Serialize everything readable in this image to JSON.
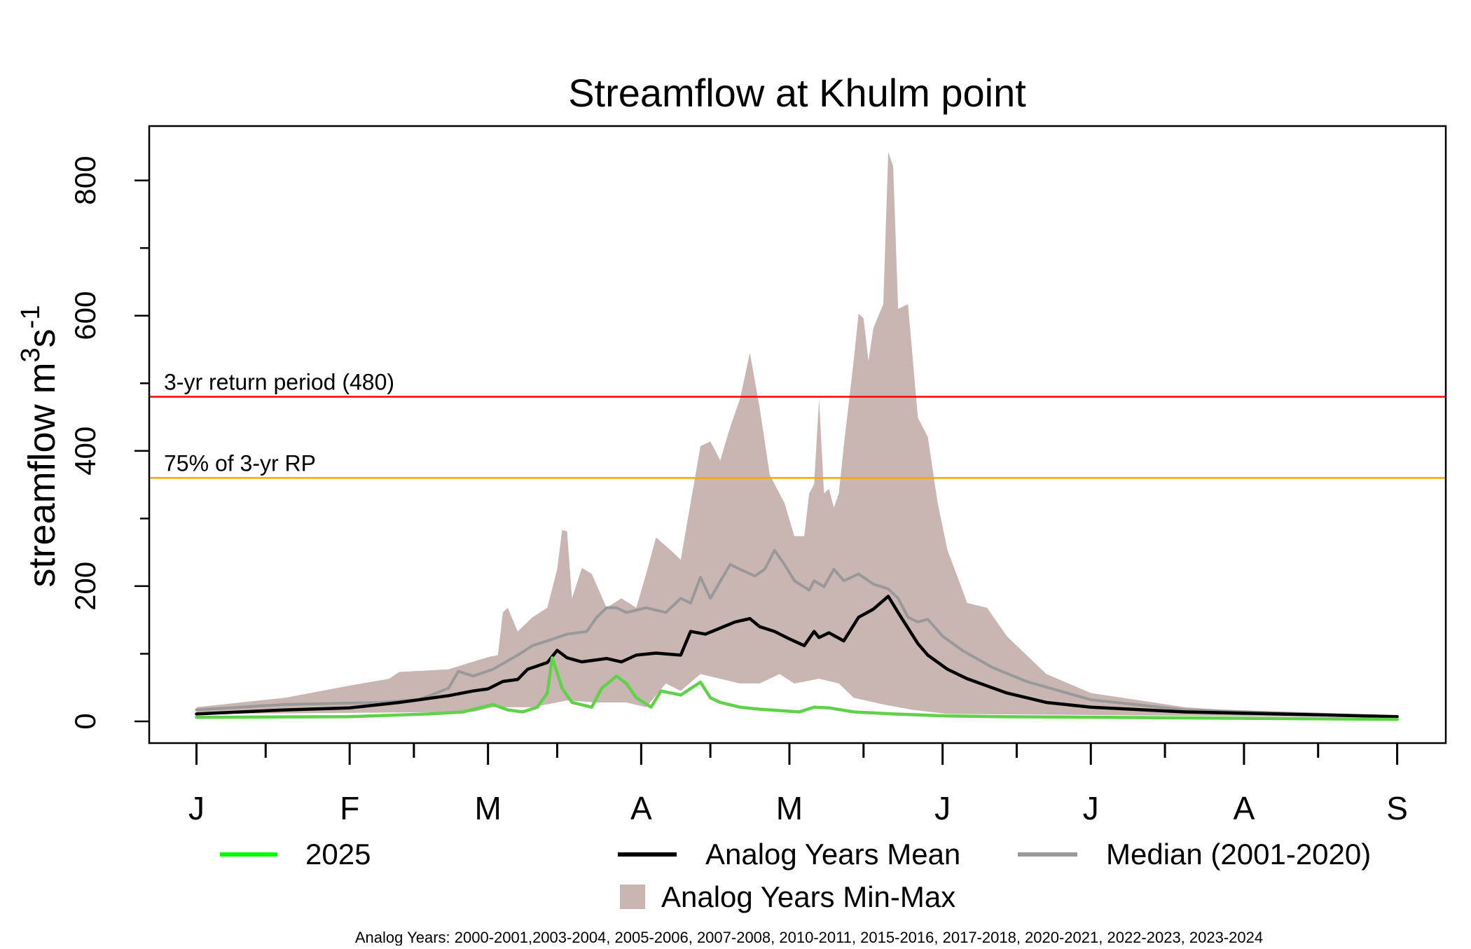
{
  "chart_data": {
    "type": "line",
    "title": "Streamflow at Khulm point",
    "ylabel": "streamflow m3s-1",
    "ylabel_parts": {
      "base": "streamflow m",
      "sup1": "3",
      "mid": "s",
      "sup2": "-1"
    },
    "xlabel": "",
    "x_unit": "day of season starting Jan 1",
    "xlim": [
      0,
      243
    ],
    "ylim": [
      0,
      800
    ],
    "y_ticks": [
      0,
      200,
      400,
      600,
      800
    ],
    "y_minor_ticks": [
      100,
      300,
      500,
      700
    ],
    "x_ticks": [
      {
        "day": 0,
        "label": "J"
      },
      {
        "day": 31,
        "label": "F"
      },
      {
        "day": 59,
        "label": "M"
      },
      {
        "day": 90,
        "label": "A"
      },
      {
        "day": 120,
        "label": "M"
      },
      {
        "day": 151,
        "label": "J"
      },
      {
        "day": 181,
        "label": "J"
      },
      {
        "day": 212,
        "label": "A"
      },
      {
        "day": 243,
        "label": "S"
      }
    ],
    "x_minor_ticks": [
      14,
      44,
      73,
      104,
      135,
      166,
      196,
      227
    ],
    "thresholds": [
      {
        "name": "3-yr return period",
        "value": 480,
        "label": "3-yr return period (480)",
        "color": "#ff0000"
      },
      {
        "name": "75% of 3-yr RP",
        "value": 360,
        "label": "75% of 3-yr RP",
        "color": "#ffa500"
      }
    ],
    "band": {
      "name": "Analog Years Min-Max",
      "color": "#c9b6b3",
      "max": [
        [
          0,
          21
        ],
        [
          18,
          35
        ],
        [
          31,
          53
        ],
        [
          39,
          63
        ],
        [
          41,
          73
        ],
        [
          51,
          77
        ],
        [
          59,
          95
        ],
        [
          61,
          98
        ],
        [
          62,
          161
        ],
        [
          63,
          168
        ],
        [
          65,
          133
        ],
        [
          68,
          154
        ],
        [
          71,
          168
        ],
        [
          73,
          225
        ],
        [
          74,
          283
        ],
        [
          75,
          281
        ],
        [
          76,
          182
        ],
        [
          78,
          227
        ],
        [
          80,
          218
        ],
        [
          83,
          168
        ],
        [
          86,
          182
        ],
        [
          89,
          168
        ],
        [
          91,
          218
        ],
        [
          93,
          272
        ],
        [
          96,
          253
        ],
        [
          98,
          239
        ],
        [
          100,
          323
        ],
        [
          102,
          407
        ],
        [
          104,
          414
        ],
        [
          106,
          386
        ],
        [
          108,
          435
        ],
        [
          110,
          477
        ],
        [
          112,
          545
        ],
        [
          114,
          463
        ],
        [
          116,
          365
        ],
        [
          117,
          351
        ],
        [
          119,
          323
        ],
        [
          121,
          274
        ],
        [
          123,
          274
        ],
        [
          124,
          337
        ],
        [
          125,
          351
        ],
        [
          126,
          477
        ],
        [
          127,
          337
        ],
        [
          128,
          344
        ],
        [
          129,
          316
        ],
        [
          130,
          337
        ],
        [
          131,
          407
        ],
        [
          133,
          533
        ],
        [
          134,
          603
        ],
        [
          135,
          596
        ],
        [
          136,
          533
        ],
        [
          137,
          582
        ],
        [
          139,
          617
        ],
        [
          140,
          842
        ],
        [
          141,
          821
        ],
        [
          142,
          610
        ],
        [
          144,
          617
        ],
        [
          146,
          449
        ],
        [
          148,
          421
        ],
        [
          150,
          323
        ],
        [
          152,
          253
        ],
        [
          156,
          175
        ],
        [
          160,
          168
        ],
        [
          164,
          126
        ],
        [
          168,
          98
        ],
        [
          172,
          70
        ],
        [
          181,
          42
        ],
        [
          200,
          21
        ],
        [
          220,
          11
        ],
        [
          243,
          7
        ]
      ],
      "min": [
        [
          0,
          11
        ],
        [
          56,
          14
        ],
        [
          60,
          21
        ],
        [
          68,
          21
        ],
        [
          75,
          31
        ],
        [
          81,
          28
        ],
        [
          87,
          28
        ],
        [
          91,
          21
        ],
        [
          95,
          56
        ],
        [
          98,
          45
        ],
        [
          102,
          70
        ],
        [
          110,
          56
        ],
        [
          114,
          56
        ],
        [
          118,
          70
        ],
        [
          121,
          56
        ],
        [
          126,
          63
        ],
        [
          130,
          56
        ],
        [
          133,
          35
        ],
        [
          139,
          25
        ],
        [
          145,
          17
        ],
        [
          152,
          11
        ],
        [
          243,
          6
        ]
      ]
    },
    "series": [
      {
        "name": "Median (2001-2020)",
        "color": "#999999",
        "legend_color": "#999999",
        "width": 4,
        "points": [
          [
            0,
            17
          ],
          [
            18,
            25
          ],
          [
            37,
            28
          ],
          [
            45,
            32
          ],
          [
            51,
            49
          ],
          [
            53,
            74
          ],
          [
            56,
            67
          ],
          [
            60,
            77
          ],
          [
            65,
            98
          ],
          [
            68,
            112
          ],
          [
            71,
            119
          ],
          [
            75,
            129
          ],
          [
            79,
            133
          ],
          [
            81,
            154
          ],
          [
            83,
            168
          ],
          [
            85,
            168
          ],
          [
            87,
            161
          ],
          [
            91,
            168
          ],
          [
            95,
            161
          ],
          [
            98,
            182
          ],
          [
            100,
            175
          ],
          [
            102,
            213
          ],
          [
            104,
            182
          ],
          [
            108,
            232
          ],
          [
            110,
            225
          ],
          [
            113,
            215
          ],
          [
            115,
            225
          ],
          [
            117,
            253
          ],
          [
            119,
            232
          ],
          [
            121,
            208
          ],
          [
            124,
            194
          ],
          [
            125,
            208
          ],
          [
            127,
            199
          ],
          [
            129,
            225
          ],
          [
            131,
            208
          ],
          [
            134,
            218
          ],
          [
            137,
            203
          ],
          [
            140,
            196
          ],
          [
            142,
            182
          ],
          [
            144,
            154
          ],
          [
            146,
            147
          ],
          [
            148,
            151
          ],
          [
            151,
            126
          ],
          [
            155,
            105
          ],
          [
            161,
            80
          ],
          [
            168,
            59
          ],
          [
            181,
            32
          ],
          [
            200,
            17
          ],
          [
            243,
            7
          ]
        ]
      },
      {
        "name": "Analog Years Mean",
        "color": "#000000",
        "legend_color": "#000000",
        "width": 4.5,
        "points": [
          [
            0,
            11
          ],
          [
            18,
            17
          ],
          [
            31,
            20
          ],
          [
            41,
            28
          ],
          [
            51,
            38
          ],
          [
            56,
            45
          ],
          [
            59,
            48
          ],
          [
            62,
            59
          ],
          [
            65,
            62
          ],
          [
            67,
            77
          ],
          [
            71,
            87
          ],
          [
            73,
            105
          ],
          [
            75,
            94
          ],
          [
            78,
            88
          ],
          [
            83,
            93
          ],
          [
            86,
            88
          ],
          [
            89,
            98
          ],
          [
            93,
            101
          ],
          [
            98,
            98
          ],
          [
            100,
            133
          ],
          [
            103,
            129
          ],
          [
            106,
            138
          ],
          [
            109,
            147
          ],
          [
            112,
            152
          ],
          [
            114,
            140
          ],
          [
            117,
            133
          ],
          [
            120,
            122
          ],
          [
            123,
            112
          ],
          [
            125,
            133
          ],
          [
            126,
            124
          ],
          [
            128,
            131
          ],
          [
            131,
            119
          ],
          [
            134,
            154
          ],
          [
            137,
            166
          ],
          [
            140,
            185
          ],
          [
            142,
            161
          ],
          [
            144,
            138
          ],
          [
            146,
            115
          ],
          [
            148,
            98
          ],
          [
            152,
            77
          ],
          [
            156,
            63
          ],
          [
            164,
            42
          ],
          [
            172,
            28
          ],
          [
            181,
            21
          ],
          [
            200,
            14
          ],
          [
            243,
            7
          ]
        ]
      },
      {
        "name": "2025",
        "color": "#5fd24a",
        "legend_color": "#00ff00",
        "width": 4.5,
        "points": [
          [
            0,
            6
          ],
          [
            31,
            7
          ],
          [
            47,
            11
          ],
          [
            54,
            14
          ],
          [
            60,
            25
          ],
          [
            63,
            17
          ],
          [
            66,
            14
          ],
          [
            69,
            21
          ],
          [
            71,
            42
          ],
          [
            72,
            94
          ],
          [
            74,
            49
          ],
          [
            76,
            28
          ],
          [
            80,
            21
          ],
          [
            82,
            49
          ],
          [
            85,
            67
          ],
          [
            87,
            56
          ],
          [
            89,
            35
          ],
          [
            92,
            21
          ],
          [
            94,
            45
          ],
          [
            98,
            39
          ],
          [
            102,
            58
          ],
          [
            104,
            35
          ],
          [
            106,
            28
          ],
          [
            110,
            21
          ],
          [
            114,
            18
          ],
          [
            122,
            14
          ],
          [
            125,
            21
          ],
          [
            128,
            20
          ],
          [
            133,
            14
          ],
          [
            141,
            11
          ],
          [
            152,
            8
          ],
          [
            162,
            7
          ],
          [
            243,
            3
          ]
        ]
      }
    ],
    "legend": {
      "placement": "bottom",
      "items": [
        {
          "label": "2025",
          "type": "line",
          "color": "#00ff00"
        },
        {
          "label": "Analog Years Mean",
          "type": "line",
          "color": "#000000"
        },
        {
          "label": "Median (2001-2020)",
          "type": "line",
          "color": "#999999"
        },
        {
          "label": "Analog Years Min-Max",
          "type": "fill",
          "color": "#c9b6b3"
        }
      ]
    },
    "footnote": "Analog Years: 2000-2001,2003-2004, 2005-2006, 2007-2008, 2010-2011, 2015-2016, 2017-2018, 2020-2021, 2022-2023, 2023-2024",
    "grid": false
  }
}
